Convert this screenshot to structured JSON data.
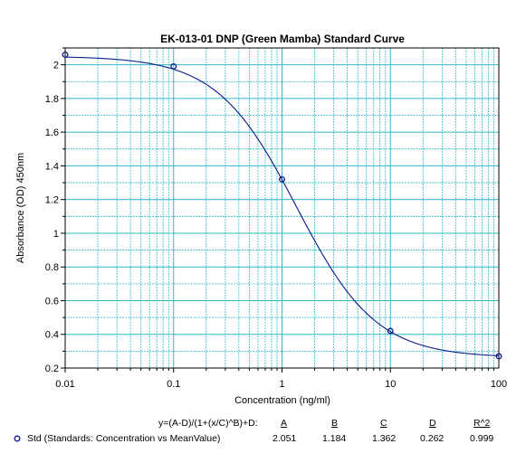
{
  "chart_data": {
    "type": "line",
    "title": "EK-013-01 DNP (Green Mamba) Standard Curve",
    "xlabel": "Concentration (ng/ml)",
    "ylabel": "Absorbance (OD) 450nm",
    "xscale": "log",
    "xlim": [
      0.01,
      100
    ],
    "ylim": [
      0.2,
      2.1
    ],
    "x_ticks": [
      "0.01",
      "0.1",
      "1",
      "10",
      "100"
    ],
    "y_ticks": [
      "0.2",
      "0.4",
      "0.6",
      "0.8",
      "1",
      "1.2",
      "1.4",
      "1.6",
      "1.8",
      "2"
    ],
    "grid": true,
    "colors": {
      "curve": "#0a1a8c",
      "marker": "#0a1a8c",
      "grid": "#33b8c8"
    },
    "series": [
      {
        "name": "Std (Standards: Concentration vs MeanValue)",
        "points": [
          {
            "x": 0.01,
            "y": 2.06
          },
          {
            "x": 0.1,
            "y": 1.99
          },
          {
            "x": 1,
            "y": 1.32
          },
          {
            "x": 10,
            "y": 0.42
          },
          {
            "x": 100,
            "y": 0.27
          }
        ],
        "fit": {
          "equation": "y=(A-D)/(1+(x/C)^B)+D:",
          "A": 2.051,
          "B": 1.184,
          "C": 1.362,
          "D": 0.262,
          "R2": 0.999
        }
      }
    ]
  },
  "legend": {
    "equation": "y=(A-D)/(1+(x/C)^B)+D:",
    "headers": {
      "A": "A",
      "B": "B",
      "C": "C",
      "D": "D",
      "R2": "R^2"
    },
    "row_label": "Std (Standards: Concentration vs MeanValue)",
    "values": {
      "A": "2.051",
      "B": "1.184",
      "C": "1.362",
      "D": "0.262",
      "R2": "0.999"
    }
  }
}
